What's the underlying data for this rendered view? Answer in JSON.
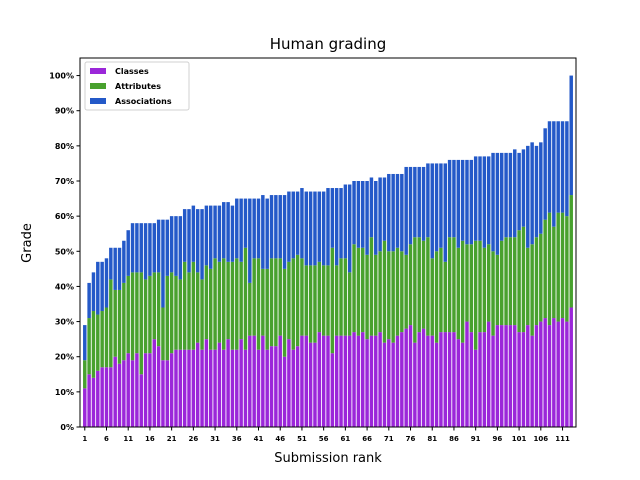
{
  "chart_data": {
    "type": "bar",
    "stacked": true,
    "title": "Human grading",
    "xlabel": "Submission rank",
    "ylabel": "Grade",
    "ylim": [
      0,
      105
    ],
    "y_ticks": [
      "0%",
      "10%",
      "20%",
      "30%",
      "40%",
      "50%",
      "60%",
      "70%",
      "80%",
      "90%",
      "100%"
    ],
    "x_ticks": [
      "1",
      "6",
      "11",
      "16",
      "21",
      "26",
      "31",
      "36",
      "41",
      "46",
      "51",
      "56",
      "61",
      "66",
      "71",
      "76",
      "81",
      "86",
      "91",
      "96",
      "101",
      "106",
      "111"
    ],
    "legend_position": "top-left",
    "grid": false,
    "categories": [
      "1",
      "2",
      "3",
      "4",
      "5",
      "6",
      "7",
      "8",
      "9",
      "10",
      "11",
      "12",
      "13",
      "14",
      "15",
      "16",
      "17",
      "18",
      "19",
      "20",
      "21",
      "22",
      "23",
      "24",
      "25",
      "26",
      "27",
      "28",
      "29",
      "30",
      "31",
      "32",
      "33",
      "34",
      "35",
      "36",
      "37",
      "38",
      "39",
      "40",
      "41",
      "42",
      "43",
      "44",
      "45",
      "46",
      "47",
      "48",
      "49",
      "50",
      "51",
      "52",
      "53",
      "54",
      "55",
      "56",
      "57",
      "58",
      "59",
      "60",
      "61",
      "62",
      "63",
      "64",
      "65",
      "66",
      "67",
      "68",
      "69",
      "70",
      "71",
      "72",
      "73",
      "74",
      "75",
      "76",
      "77",
      "78",
      "79",
      "80",
      "81",
      "82",
      "83",
      "84",
      "85",
      "86",
      "87",
      "88",
      "89",
      "90",
      "91",
      "92",
      "93",
      "94",
      "95",
      "96",
      "97",
      "98",
      "99",
      "100",
      "101",
      "102",
      "103",
      "104",
      "105",
      "106",
      "107",
      "108",
      "109",
      "110",
      "111",
      "112",
      "113"
    ],
    "series": [
      {
        "name": "Classes",
        "color": "#9b27d9",
        "values": [
          11,
          15,
          14,
          16,
          17,
          17,
          17,
          20,
          18,
          19,
          21,
          19,
          21,
          15,
          21,
          21,
          25,
          23,
          19,
          19,
          21,
          22,
          22,
          22,
          22,
          22,
          24,
          22,
          25,
          22,
          22,
          24,
          22,
          25,
          22,
          22,
          25,
          22,
          26,
          26,
          22,
          26,
          22,
          23,
          23,
          26,
          20,
          25,
          22,
          23,
          26,
          26,
          24,
          24,
          27,
          26,
          26,
          21,
          26,
          26,
          26,
          26,
          27,
          26,
          27,
          25,
          26,
          26,
          27,
          24,
          25,
          24,
          26,
          27,
          28,
          29,
          24,
          27,
          28,
          26,
          26,
          24,
          27,
          27,
          27,
          27,
          25,
          24,
          30,
          27,
          22,
          27,
          27,
          30,
          26,
          29,
          29,
          29,
          29,
          29,
          27,
          27,
          29,
          26,
          29,
          30,
          31,
          29,
          31,
          30,
          31,
          30,
          34
        ]
      },
      {
        "name": "Attributes",
        "color": "#48a12e",
        "values": [
          8,
          16,
          19,
          16,
          16,
          17,
          25,
          19,
          21,
          22,
          22,
          25,
          23,
          29,
          21,
          22,
          19,
          21,
          15,
          24,
          23,
          21,
          20,
          25,
          22,
          25,
          20,
          20,
          21,
          23,
          26,
          23,
          26,
          22,
          25,
          26,
          22,
          29,
          15,
          22,
          26,
          19,
          23,
          25,
          25,
          22,
          25,
          22,
          26,
          26,
          22,
          20,
          22,
          22,
          20,
          20,
          20,
          30,
          20,
          22,
          22,
          18,
          25,
          25,
          24,
          24,
          28,
          23,
          23,
          29,
          25,
          26,
          25,
          23,
          21,
          23,
          30,
          27,
          25,
          28,
          22,
          26,
          24,
          20,
          27,
          27,
          26,
          29,
          22,
          25,
          31,
          26,
          24,
          22,
          24,
          20,
          24,
          25,
          25,
          25,
          29,
          30,
          22,
          26,
          25,
          25,
          28,
          32,
          26,
          31,
          30,
          30,
          32
        ]
      },
      {
        "name": "Associations",
        "color": "#2459c8",
        "values": [
          10,
          10,
          11,
          15,
          14,
          14,
          9,
          12,
          12,
          12,
          13,
          14,
          14,
          14,
          16,
          15,
          14,
          15,
          25,
          16,
          16,
          17,
          18,
          15,
          18,
          16,
          18,
          20,
          17,
          18,
          15,
          16,
          16,
          17,
          16,
          17,
          18,
          14,
          24,
          17,
          17,
          21,
          20,
          18,
          18,
          18,
          21,
          20,
          19,
          18,
          20,
          21,
          21,
          21,
          20,
          21,
          22,
          17,
          22,
          20,
          21,
          25,
          18,
          19,
          19,
          21,
          17,
          21,
          21,
          18,
          22,
          22,
          21,
          22,
          25,
          22,
          20,
          20,
          21,
          21,
          27,
          25,
          24,
          28,
          22,
          22,
          25,
          23,
          24,
          24,
          24,
          24,
          26,
          25,
          28,
          29,
          25,
          24,
          24,
          25,
          22,
          22,
          29,
          29,
          26,
          26,
          26,
          26,
          30,
          26,
          26,
          27,
          34
        ]
      }
    ]
  }
}
